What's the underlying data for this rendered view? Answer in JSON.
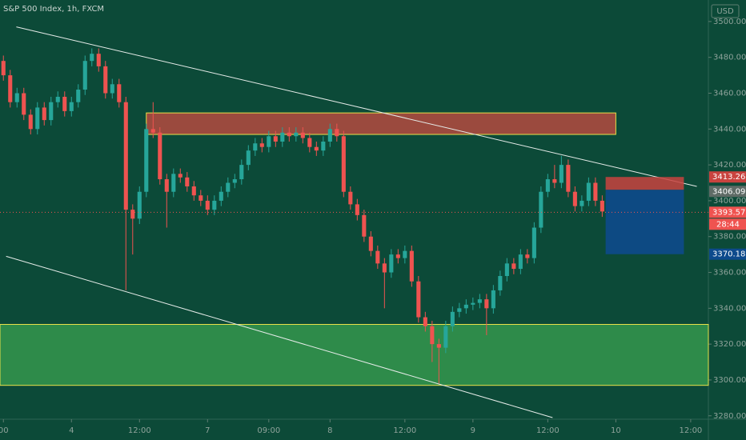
{
  "chart_data": {
    "type": "candlestick",
    "title": "S&P 500 Index, 1h, FXCM",
    "currency": "USD",
    "up_color": "#26a69a",
    "down_color": "#ef5350",
    "open": [
      3478,
      3470,
      3455,
      3460,
      3448,
      3440,
      3452,
      3445,
      3455,
      3458,
      3450,
      3455,
      3462,
      3478,
      3482,
      3475,
      3460,
      3465,
      3455,
      3395,
      3390,
      3405,
      3440,
      3438,
      3412,
      3405,
      3415,
      3413,
      3408,
      3403,
      3400,
      3395,
      3400,
      3405,
      3410,
      3412,
      3420,
      3428,
      3432,
      3430,
      3436,
      3433,
      3438,
      3436,
      3438,
      3435,
      3430,
      3428,
      3433,
      3440,
      3436,
      3405,
      3398,
      3392,
      3380,
      3372,
      3365,
      3360,
      3370,
      3368,
      3372,
      3355,
      3335,
      3330,
      3320,
      3318,
      3330,
      3338,
      3340,
      3342,
      3343,
      3345,
      3340,
      3350,
      3358,
      3365,
      3362,
      3370,
      3368,
      3385,
      3405,
      3412,
      3410,
      3420,
      3405,
      3397,
      3400,
      3410,
      3400
    ],
    "high": [
      3481,
      3473,
      3463,
      3463,
      3451,
      3455,
      3455,
      3458,
      3461,
      3461,
      3458,
      3465,
      3481,
      3485,
      3485,
      3478,
      3468,
      3468,
      3458,
      3398,
      3408,
      3443,
      3455,
      3441,
      3415,
      3418,
      3418,
      3416,
      3411,
      3406,
      3403,
      3403,
      3408,
      3413,
      3415,
      3423,
      3431,
      3435,
      3435,
      3439,
      3439,
      3441,
      3441,
      3441,
      3441,
      3438,
      3433,
      3436,
      3443,
      3443,
      3439,
      3408,
      3401,
      3395,
      3383,
      3375,
      3368,
      3373,
      3373,
      3375,
      3375,
      3358,
      3338,
      3333,
      3323,
      3333,
      3341,
      3343,
      3345,
      3346,
      3348,
      3348,
      3353,
      3361,
      3368,
      3368,
      3373,
      3373,
      3388,
      3408,
      3415,
      3420,
      3425,
      3423,
      3408,
      3403,
      3413,
      3413,
      3403
    ],
    "low": [
      3467,
      3452,
      3452,
      3445,
      3437,
      3437,
      3442,
      3442,
      3452,
      3447,
      3447,
      3452,
      3459,
      3475,
      3472,
      3457,
      3457,
      3452,
      3350,
      3370,
      3387,
      3402,
      3435,
      3409,
      3385,
      3402,
      3410,
      3405,
      3400,
      3397,
      3392,
      3392,
      3397,
      3402,
      3407,
      3409,
      3417,
      3425,
      3427,
      3427,
      3430,
      3430,
      3433,
      3433,
      3432,
      3427,
      3425,
      3425,
      3430,
      3433,
      3402,
      3395,
      3389,
      3377,
      3369,
      3362,
      3340,
      3357,
      3365,
      3365,
      3352,
      3332,
      3327,
      3310,
      3298,
      3315,
      3327,
      3335,
      3337,
      3339,
      3340,
      3325,
      3337,
      3347,
      3355,
      3359,
      3359,
      3365,
      3365,
      3382,
      3402,
      3407,
      3407,
      3402,
      3394,
      3394,
      3397,
      3397,
      3391
    ],
    "close": [
      3470,
      3455,
      3460,
      3448,
      3440,
      3452,
      3445,
      3455,
      3458,
      3450,
      3455,
      3462,
      3478,
      3482,
      3475,
      3460,
      3465,
      3455,
      3395,
      3390,
      3405,
      3440,
      3438,
      3412,
      3405,
      3415,
      3413,
      3408,
      3403,
      3400,
      3395,
      3400,
      3405,
      3410,
      3412,
      3420,
      3428,
      3432,
      3430,
      3436,
      3433,
      3438,
      3436,
      3438,
      3435,
      3430,
      3428,
      3433,
      3440,
      3436,
      3405,
      3398,
      3392,
      3380,
      3372,
      3365,
      3360,
      3370,
      3368,
      3372,
      3355,
      3335,
      3330,
      3320,
      3318,
      3330,
      3338,
      3340,
      3342,
      3343,
      3345,
      3340,
      3350,
      3358,
      3365,
      3362,
      3370,
      3368,
      3385,
      3405,
      3412,
      3410,
      3420,
      3405,
      3397,
      3400,
      3410,
      3400,
      3394
    ],
    "xlim": [
      -0.5,
      103.6
    ],
    "xticks": [
      {
        "value": 0,
        "label": "00"
      },
      {
        "value": 10,
        "label": "4"
      },
      {
        "value": 20,
        "label": "12:00"
      },
      {
        "value": 30,
        "label": "7"
      },
      {
        "value": 39,
        "label": "09:00"
      },
      {
        "value": 48,
        "label": "8"
      },
      {
        "value": 59,
        "label": "12:00"
      },
      {
        "value": 69,
        "label": "9"
      },
      {
        "value": 80,
        "label": "12:00"
      },
      {
        "value": 90,
        "label": "10"
      },
      {
        "value": 101,
        "label": "12:00"
      }
    ],
    "ylim": [
      3279,
      3512
    ],
    "yticks": [
      {
        "value": 3280,
        "label": "3280.00"
      },
      {
        "value": 3300,
        "label": "3300.00"
      },
      {
        "value": 3320,
        "label": "3320.00"
      },
      {
        "value": 3340,
        "label": "3340.00"
      },
      {
        "value": 3360,
        "label": "3360.00"
      },
      {
        "value": 3380,
        "label": "3380.00"
      },
      {
        "value": 3400,
        "label": "3400.00"
      },
      {
        "value": 3420,
        "label": "3420.00"
      },
      {
        "value": 3440,
        "label": "3440.00"
      },
      {
        "value": 3460,
        "label": "3460.00"
      },
      {
        "value": 3480,
        "label": "3480.00"
      },
      {
        "value": 3500,
        "label": "3500.00"
      }
    ],
    "zones": [
      {
        "x": [
          21,
          90
        ],
        "y": [
          3437,
          3449
        ],
        "color": "#9b4a3e"
      },
      {
        "x": [
          -0.5,
          103.6
        ],
        "y": [
          3297,
          3331
        ],
        "color": "#2e8b4a"
      }
    ],
    "trendlines": [
      {
        "x": [
          1.9,
          101.9
        ],
        "y": [
          3497,
          3408
        ]
      },
      {
        "x": [
          0.4,
          80.7
        ],
        "y": [
          3369,
          3279
        ]
      }
    ],
    "position": {
      "x": [
        88.5,
        100
      ],
      "entry": 3406.09,
      "target": 3413.26,
      "stop": 3370.18
    },
    "last_price": 3393.57,
    "countdown": "28:44"
  }
}
